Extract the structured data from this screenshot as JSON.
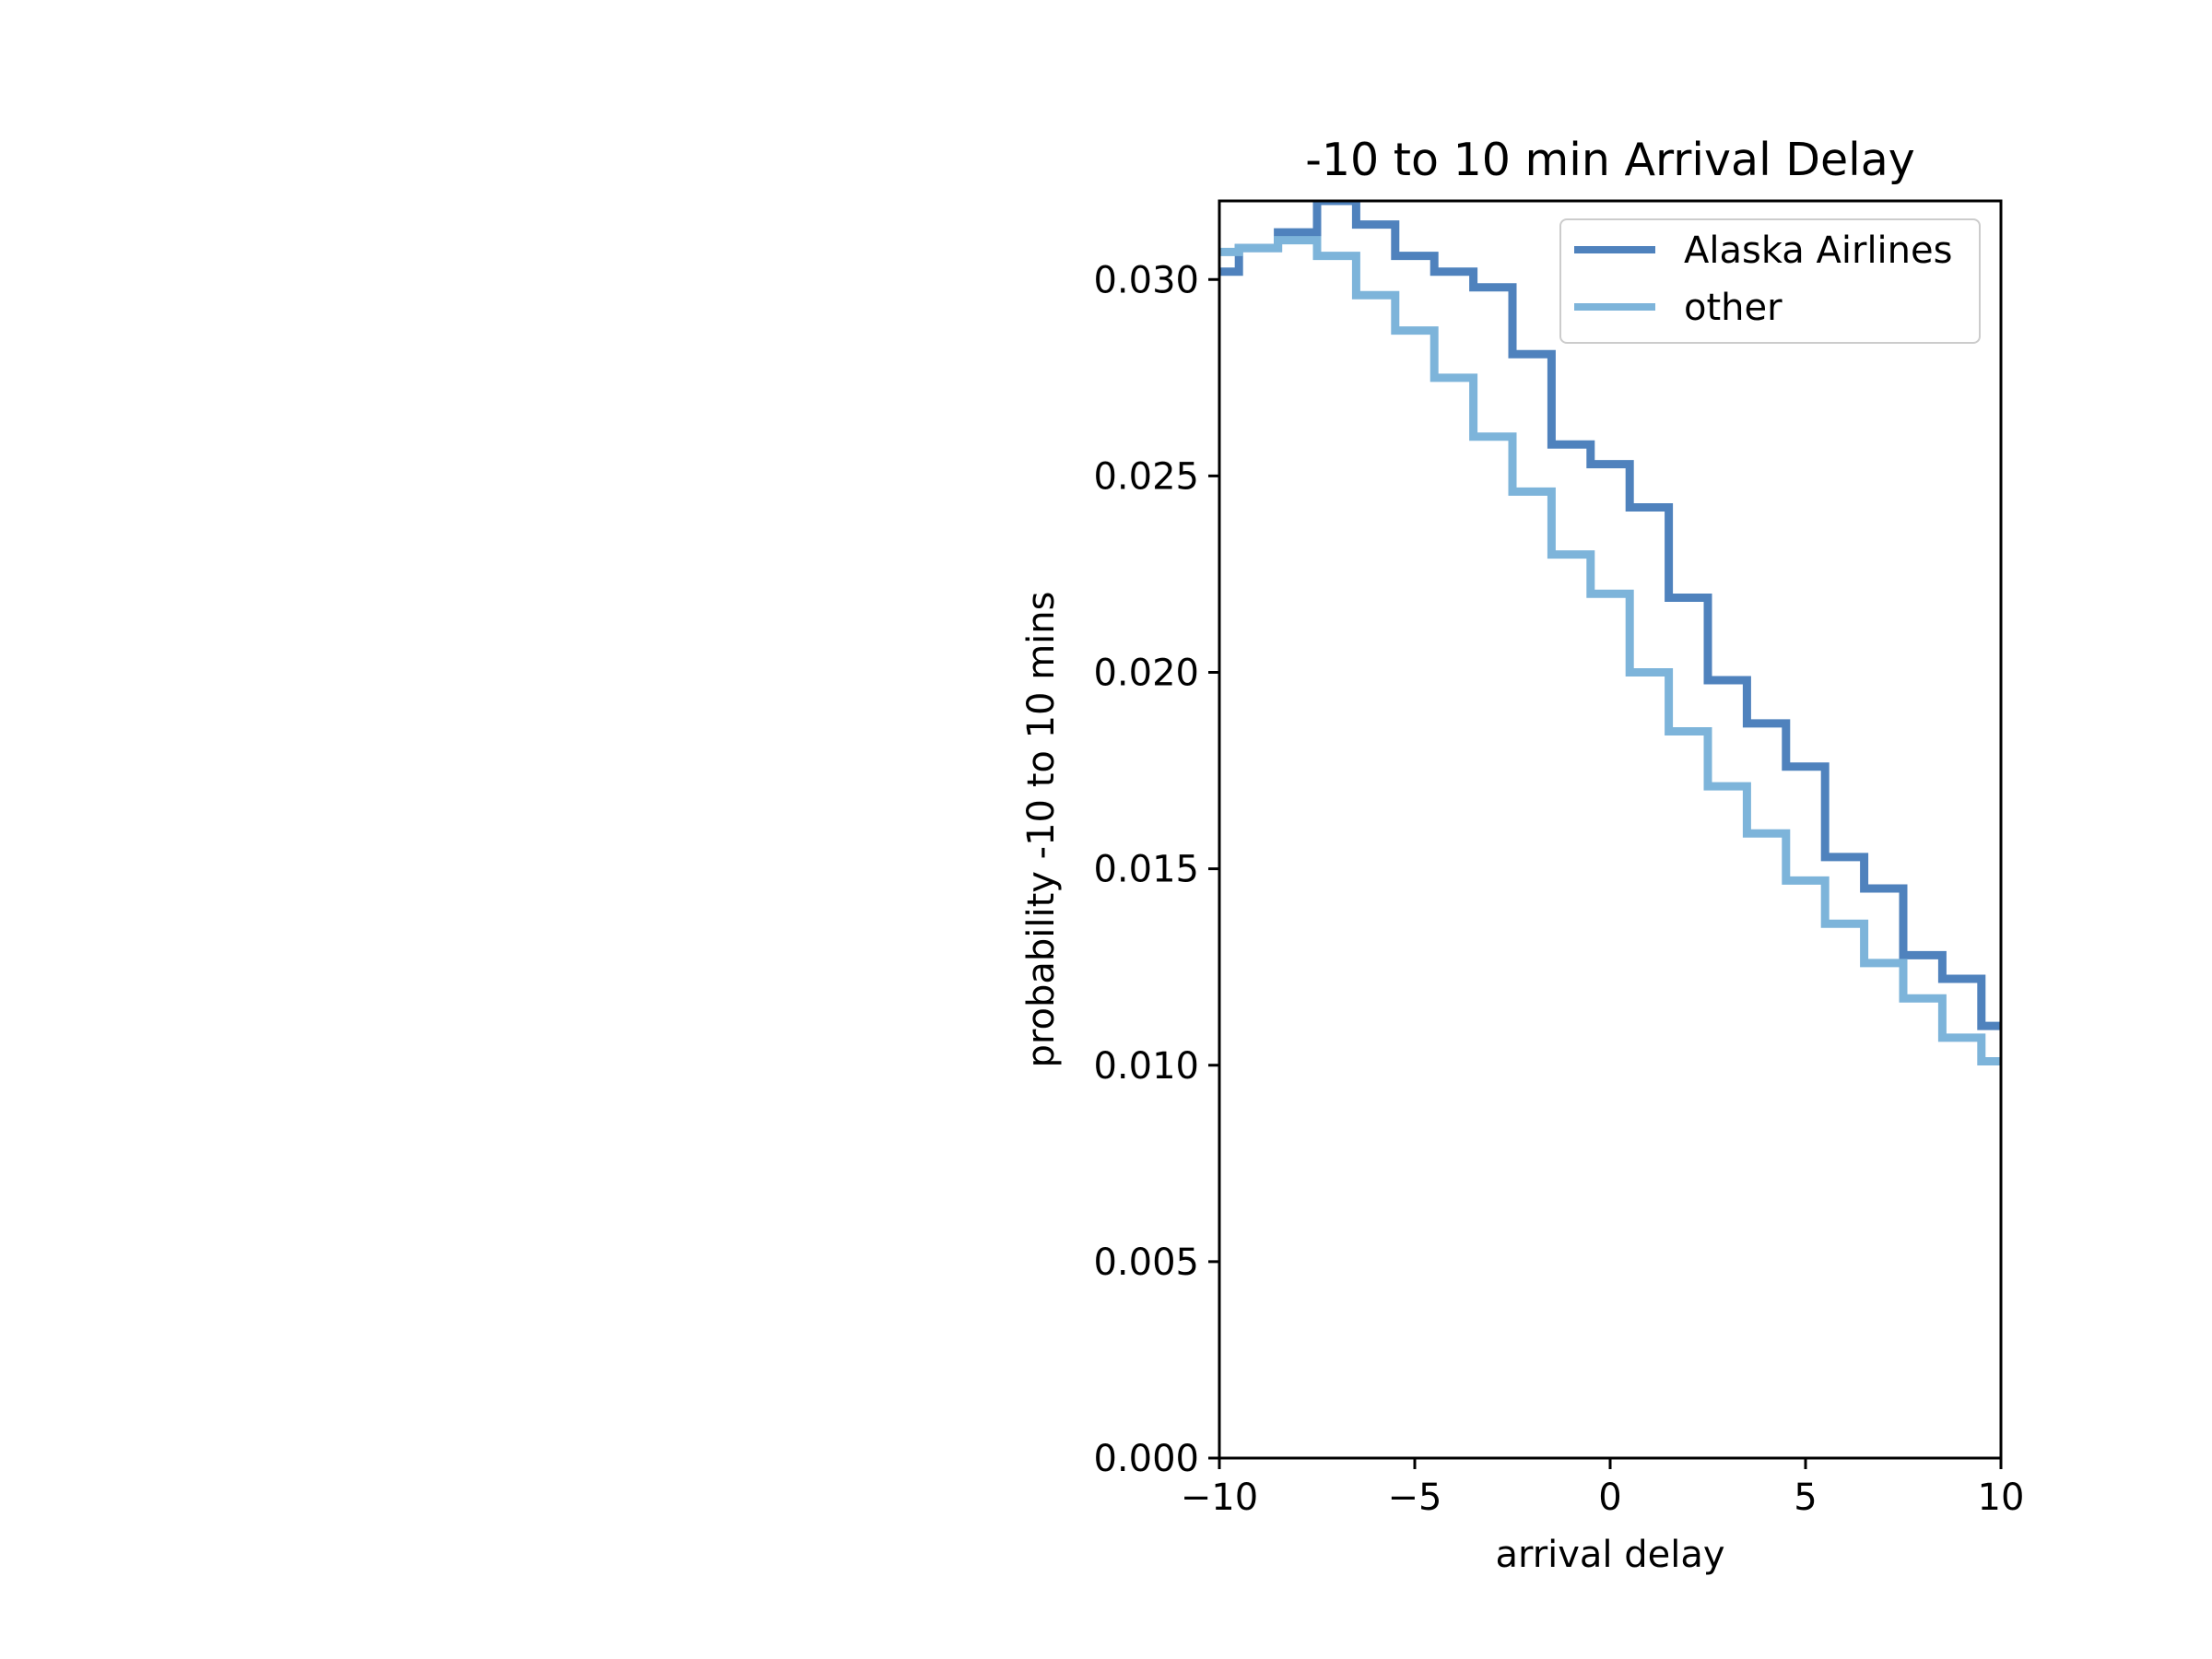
{
  "chart_data": {
    "type": "line",
    "step": true,
    "title": "-10 to 10 min Arrival Delay",
    "xlabel": "arrival delay",
    "ylabel": "probability -10 to 10 mins",
    "xlim": [
      -10,
      10
    ],
    "ylim": [
      0,
      0.032
    ],
    "xticks": [
      -10,
      -5,
      0,
      5,
      10
    ],
    "xtick_labels": [
      "−10",
      "−5",
      "0",
      "5",
      "10"
    ],
    "yticks": [
      0,
      0.005,
      0.01,
      0.015,
      0.02,
      0.025,
      0.03
    ],
    "ytick_labels": [
      "0.000",
      "0.005",
      "0.010",
      "0.015",
      "0.020",
      "0.025",
      "0.030"
    ],
    "grid": false,
    "legend_position": "top-right",
    "colors": {
      "Alaska Airlines": "#4f82bd",
      "other": "#7db4da",
      "axes": "#000000"
    },
    "series": [
      {
        "name": "Alaska Airlines",
        "x": [
          -10,
          -9.5,
          -8.5,
          -7.5,
          -6.5,
          -5.5,
          -4.5,
          -3.5,
          -2.5,
          -1.5,
          -0.5,
          0.5,
          1.5,
          2.5,
          3.5,
          4.5,
          5.5,
          6.5,
          7.5,
          8.5,
          9.5,
          10
        ],
        "values": [
          0.0302,
          0.0308,
          0.0312,
          0.032,
          0.0314,
          0.0306,
          0.0302,
          0.0298,
          0.0281,
          0.0258,
          0.0253,
          0.0242,
          0.0219,
          0.0198,
          0.0187,
          0.0176,
          0.0153,
          0.0145,
          0.0128,
          0.0122,
          0.011,
          0.011
        ]
      },
      {
        "name": "other",
        "x": [
          -10,
          -9.5,
          -8.5,
          -7.5,
          -6.5,
          -5.5,
          -4.5,
          -3.5,
          -2.5,
          -1.5,
          -0.5,
          0.5,
          1.5,
          2.5,
          3.5,
          4.5,
          5.5,
          6.5,
          7.5,
          8.5,
          9.5,
          10
        ],
        "values": [
          0.0307,
          0.0308,
          0.031,
          0.0306,
          0.0296,
          0.0287,
          0.0275,
          0.026,
          0.0246,
          0.023,
          0.022,
          0.02,
          0.0185,
          0.0171,
          0.0159,
          0.0147,
          0.0136,
          0.0126,
          0.0117,
          0.0107,
          0.0101,
          0.0101
        ]
      }
    ]
  }
}
